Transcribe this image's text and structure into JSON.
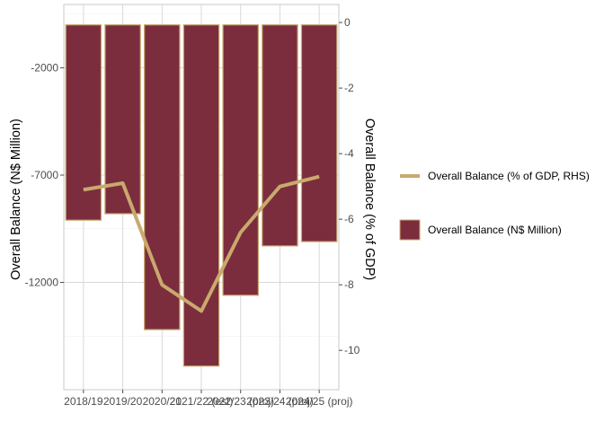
{
  "chart_data": {
    "type": "bar",
    "categories": [
      "2018/19",
      "2019/20",
      "2020/21",
      "2021/22 (est)",
      "2022/23 (proj)",
      "2023/24 (proj)",
      "2024/25 (proj)"
    ],
    "series": [
      {
        "name": "Overall Balance (N$ Million)",
        "type": "bar",
        "axis": "left",
        "values": [
          -9100,
          -8800,
          -14200,
          -15900,
          -12600,
          -10300,
          -10100
        ]
      },
      {
        "name": "Overall Balance (% of GDP, RHS)",
        "type": "line",
        "axis": "right",
        "values": [
          -5.1,
          -4.9,
          -8.0,
          -8.8,
          -6.4,
          -5.0,
          -4.7
        ]
      }
    ],
    "ylabel": "Overall Balance (N$ Million)",
    "y2label": "Overall Balance (% of GDP)",
    "xlabel": "",
    "y_ticks": [
      -2000,
      -7000,
      -12000
    ],
    "y2_ticks": [
      0,
      -2,
      -4,
      -6,
      -8,
      -10
    ],
    "ylim": [
      -17000,
      950
    ],
    "y2lim": [
      -11.2,
      0.55
    ],
    "legend_position": "right",
    "grid": true,
    "colors": {
      "bar_fill": "#7b2d3e",
      "bar_border": "#c9a96e",
      "line": "#c9a96e",
      "grid_major": "#d9d9d9",
      "grid_minor": "#ececec",
      "panel_border": "#c8c8c8"
    }
  }
}
